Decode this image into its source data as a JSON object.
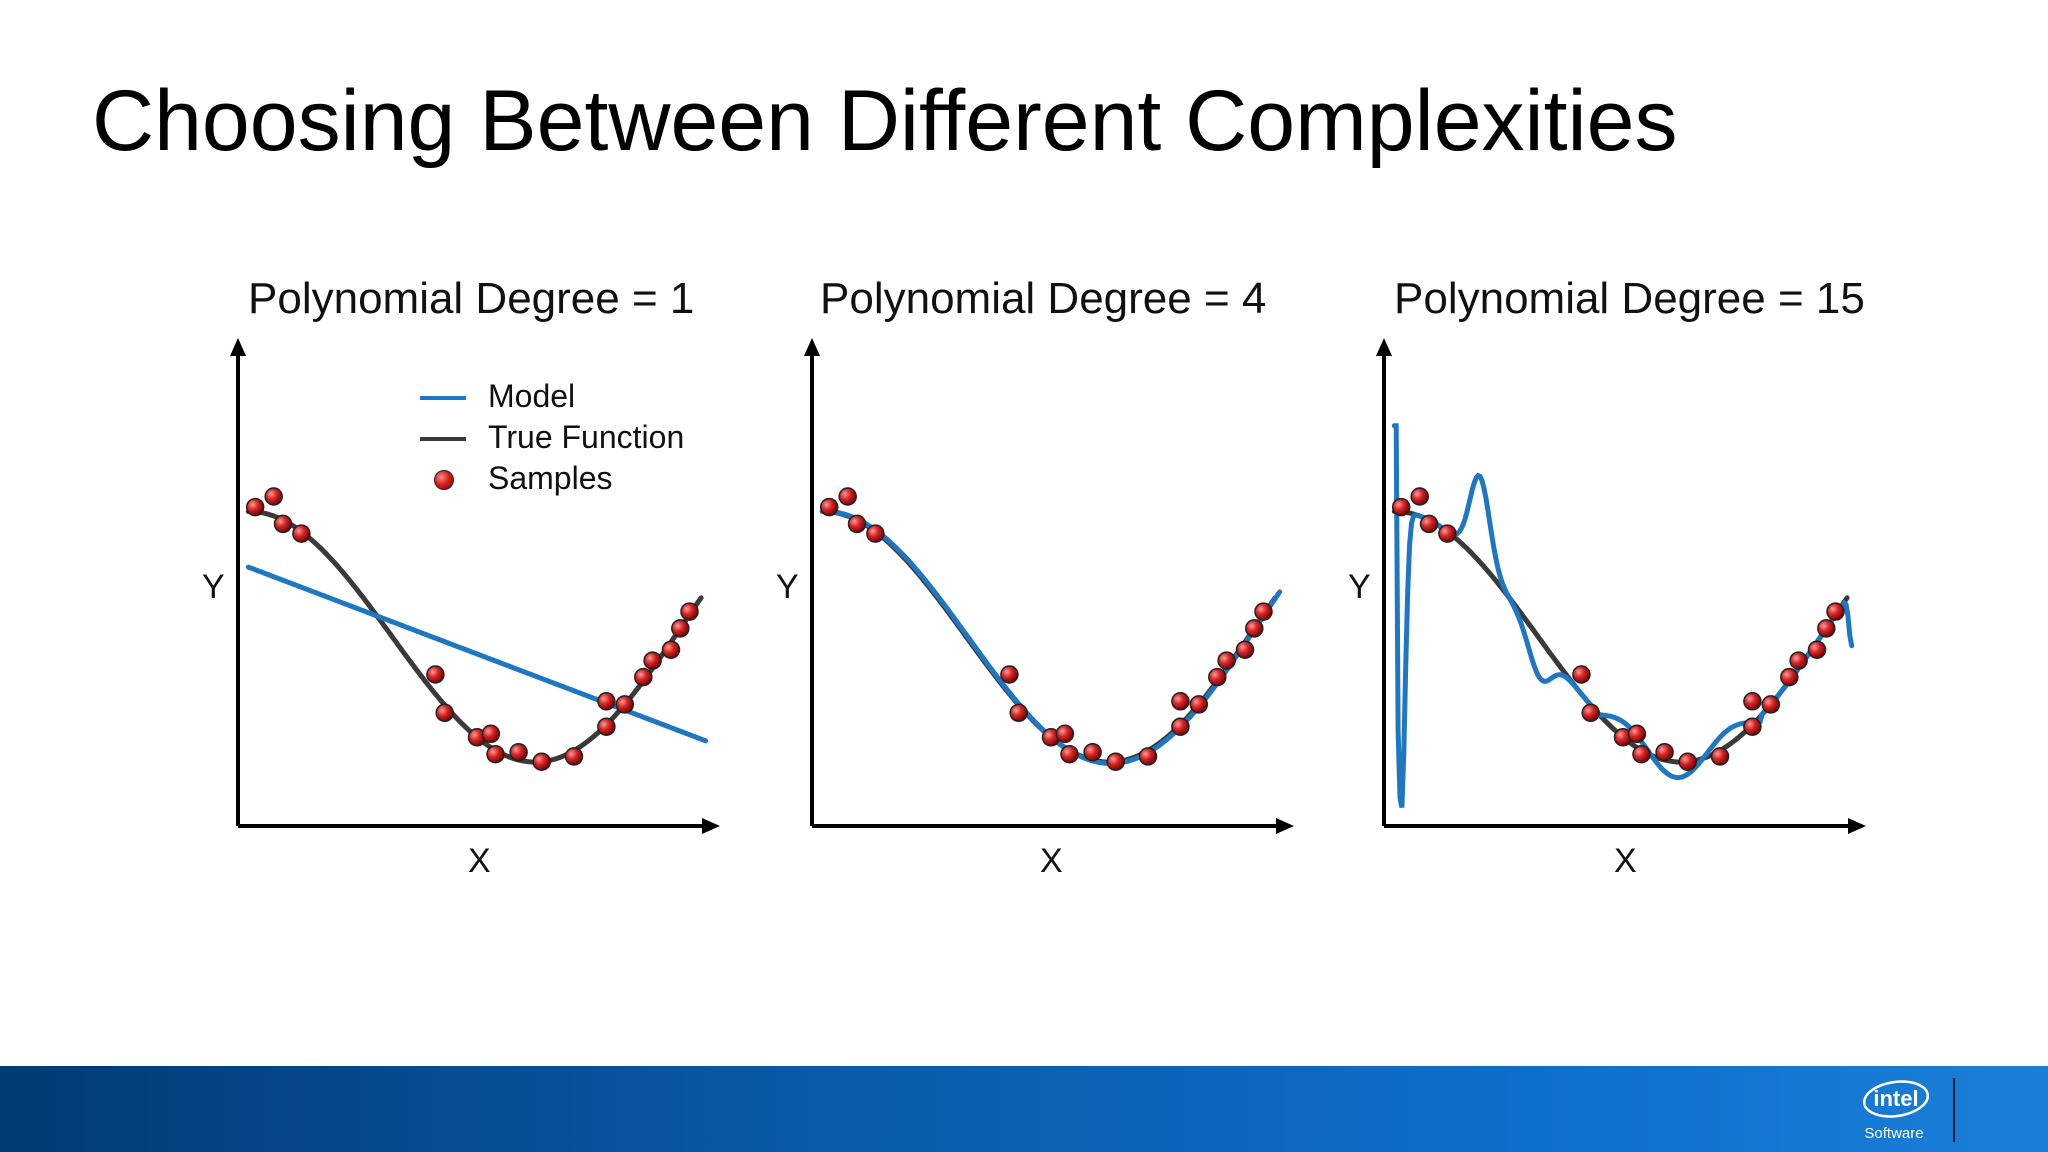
{
  "slide": {
    "title": "Choosing Between Different Complexities"
  },
  "legend": {
    "items": [
      {
        "label": "Model",
        "kind": "line",
        "color": "#1f77c4"
      },
      {
        "label": "True Function",
        "kind": "line",
        "color": "#3a3a3a"
      },
      {
        "label": "Samples",
        "kind": "dot",
        "color": "#c41e1e"
      }
    ]
  },
  "chart_data": [
    {
      "type": "scatter",
      "title": "Polynomial Degree = 1",
      "xlabel": "X",
      "ylabel": "Y",
      "degree": 1,
      "model": "linear"
    },
    {
      "type": "scatter",
      "title": "Polynomial Degree = 4",
      "xlabel": "X",
      "ylabel": "Y",
      "degree": 4,
      "model": "good-fit"
    },
    {
      "type": "scatter",
      "title": "Polynomial Degree = 15",
      "xlabel": "X",
      "ylabel": "Y",
      "degree": 15,
      "model": "overfit"
    }
  ],
  "footer": {
    "brand": "intel",
    "subbrand": "Software",
    "bar_color": "#0a5aa8"
  }
}
